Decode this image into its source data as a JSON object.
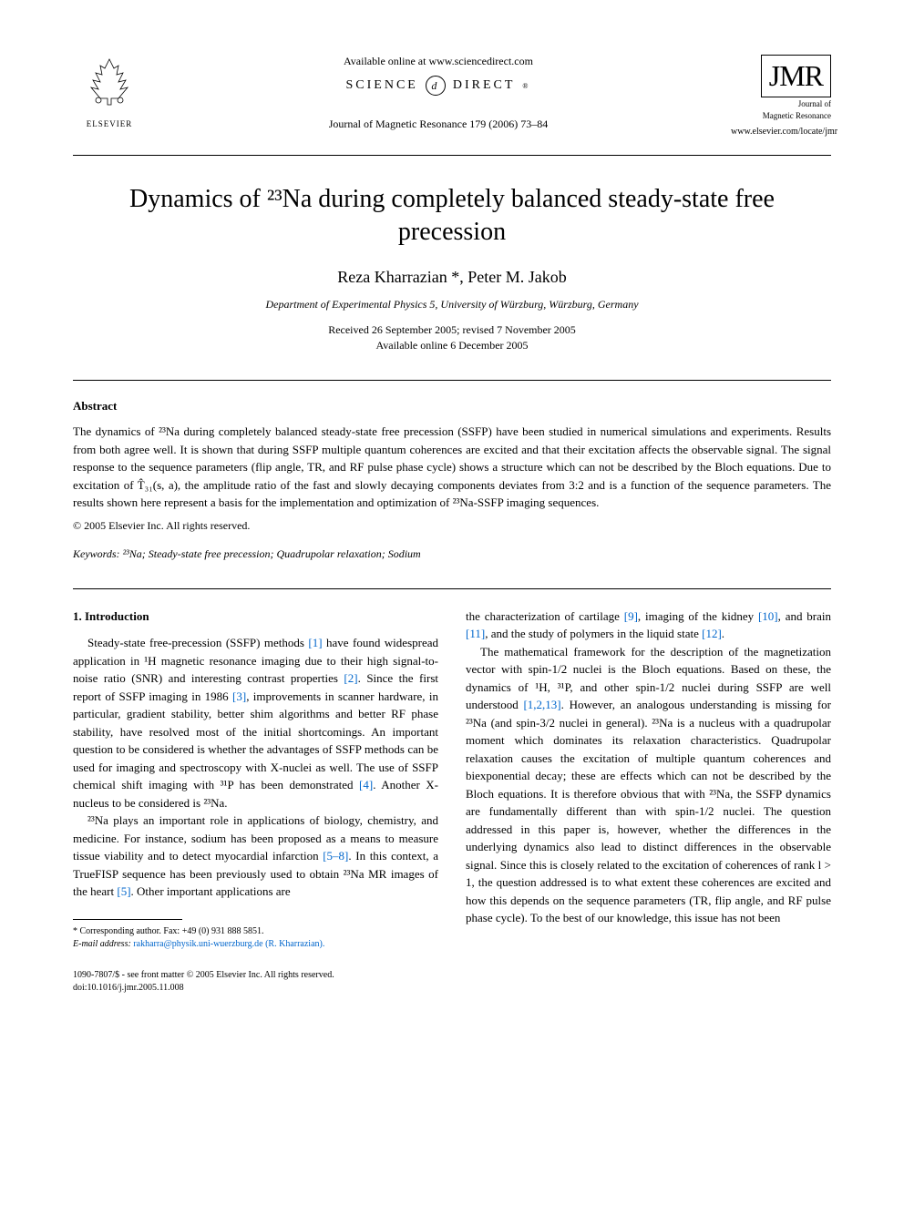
{
  "header": {
    "elsevier_label": "ELSEVIER",
    "available_online": "Available online at www.sciencedirect.com",
    "sciencedirect": "SCIENCE",
    "sciencedirect2": "DIRECT",
    "journal_citation": "Journal of Magnetic Resonance 179 (2006) 73–84",
    "jmr_big": "JMR",
    "jmr_sub1": "Journal of",
    "jmr_sub2": "Magnetic Resonance",
    "jmr_url": "www.elsevier.com/locate/jmr"
  },
  "title": "Dynamics of ²³Na during completely balanced steady-state free precession",
  "authors": "Reza Kharrazian *, Peter M. Jakob",
  "affiliation": "Department of Experimental Physics 5, University of Würzburg, Würzburg, Germany",
  "dates_line1": "Received 26 September 2005; revised 7 November 2005",
  "dates_line2": "Available online 6 December 2005",
  "abstract_heading": "Abstract",
  "abstract_text": "The dynamics of ²³Na during completely balanced steady-state free precession (SSFP) have been studied in numerical simulations and experiments. Results from both agree well. It is shown that during SSFP multiple quantum coherences are excited and that their excitation affects the observable signal. The signal response to the sequence parameters (flip angle, TR, and RF pulse phase cycle) shows a structure which can not be described by the Bloch equations. Due to excitation of T̂₃₁(s, a), the amplitude ratio of the fast and slowly decaying components deviates from 3:2 and is a function of the sequence parameters. The results shown here represent a basis for the implementation and optimization of ²³Na-SSFP imaging sequences.",
  "copyright": "© 2005 Elsevier Inc. All rights reserved.",
  "keywords_label": "Keywords:",
  "keywords_text": " ²³Na; Steady-state free precession; Quadrupolar relaxation; Sodium",
  "intro_heading": "1. Introduction",
  "col1_p1": "Steady-state free-precession (SSFP) methods [1] have found widespread application in ¹H magnetic resonance imaging due to their high signal-to-noise ratio (SNR) and interesting contrast properties [2]. Since the first report of SSFP imaging in 1986 [3], improvements in scanner hardware, in particular, gradient stability, better shim algorithms and better RF phase stability, have resolved most of the initial shortcomings. An important question to be considered is whether the advantages of SSFP methods can be used for imaging and spectroscopy with X-nuclei as well. The use of SSFP chemical shift imaging with ³¹P has been demonstrated [4]. Another X-nucleus to be considered is ²³Na.",
  "col1_p2": "²³Na plays an important role in applications of biology, chemistry, and medicine. For instance, sodium has been proposed as a means to measure tissue viability and to detect myocardial infarction [5–8]. In this context, a TrueFISP sequence has been previously used to obtain ²³Na MR images of the heart [5]. Other important applications are",
  "col2_p1": "the characterization of cartilage [9], imaging of the kidney [10], and brain [11], and the study of polymers in the liquid state [12].",
  "col2_p2": "The mathematical framework for the description of the magnetization vector with spin-1/2 nuclei is the Bloch equations. Based on these, the dynamics of ¹H, ³¹P, and other spin-1/2 nuclei during SSFP are well understood [1,2,13]. However, an analogous understanding is missing for ²³Na (and spin-3/2 nuclei in general). ²³Na is a nucleus with a quadrupolar moment which dominates its relaxation characteristics. Quadrupolar relaxation causes the excitation of multiple quantum coherences and biexponential decay; these are effects which can not be described by the Bloch equations. It is therefore obvious that with ²³Na, the SSFP dynamics are fundamentally different than with spin-1/2 nuclei. The question addressed in this paper is, however, whether the differences in the underlying dynamics also lead to distinct differences in the observable signal. Since this is closely related to the excitation of coherences of rank l > 1, the question addressed is to what extent these coherences are excited and how this depends on the sequence parameters (TR, flip angle, and RF pulse phase cycle). To the best of our knowledge, this issue has not been",
  "footnote_corr": "* Corresponding author. Fax: +49 (0) 931 888 5851.",
  "footnote_email_label": "E-mail address:",
  "footnote_email": " rakharra@physik.uni-wuerzburg.de (R. Kharrazian).",
  "footer_issn": "1090-7807/$ - see front matter © 2005 Elsevier Inc. All rights reserved.",
  "footer_doi": "doi:10.1016/j.jmr.2005.11.008",
  "ref_color": "#0066cc"
}
